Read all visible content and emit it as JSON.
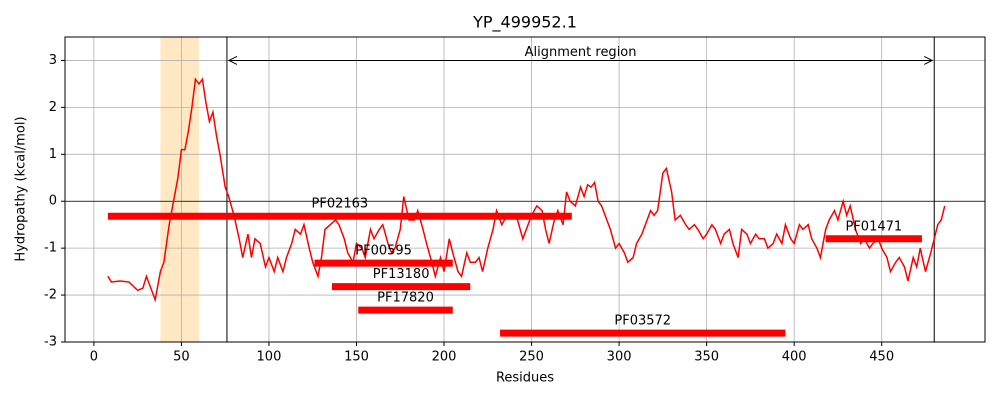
{
  "chart_data": {
    "type": "line",
    "title": "YP_499952.1",
    "xlabel": "Residues",
    "ylabel": "Hydropathy (kcal/mol)",
    "color": "#ff0000",
    "grid": true,
    "hline": 0,
    "xlim": [
      -16.5,
      509
    ],
    "ylim": [
      -3,
      3.5
    ],
    "xticks": [
      0,
      50,
      100,
      150,
      200,
      250,
      300,
      350,
      400,
      450
    ],
    "yticks": [
      -3,
      -2,
      -1,
      0,
      1,
      2,
      3
    ],
    "highlight": {
      "start": 38,
      "end": 60,
      "color": "#ffe8c2"
    },
    "alignment": {
      "label": "Alignment region",
      "start": 76,
      "end": 480,
      "y": 3
    },
    "domains": [
      {
        "name": "PF02163",
        "start": 8,
        "end": 273,
        "y": -0.32
      },
      {
        "name": "PF00595",
        "start": 126,
        "end": 205,
        "y": -1.32
      },
      {
        "name": "PF13180",
        "start": 136,
        "end": 215,
        "y": -1.82
      },
      {
        "name": "PF17820",
        "start": 151,
        "end": 205,
        "y": -2.32
      },
      {
        "name": "PF03572",
        "start": 232,
        "end": 395,
        "y": -2.81
      },
      {
        "name": "PF01471",
        "start": 418,
        "end": 473,
        "y": -0.8
      }
    ],
    "x": [
      8,
      10,
      15,
      20,
      25,
      28,
      30,
      33,
      35,
      38,
      40,
      43,
      45,
      48,
      50,
      52,
      54,
      56,
      58,
      60,
      62,
      64,
      66,
      68,
      70,
      72,
      75,
      77,
      80,
      83,
      85,
      88,
      90,
      92,
      95,
      98,
      100,
      103,
      105,
      108,
      110,
      113,
      115,
      118,
      120,
      123,
      125,
      128,
      130,
      132,
      135,
      138,
      140,
      143,
      145,
      148,
      150,
      153,
      155,
      158,
      160,
      163,
      165,
      168,
      170,
      172,
      175,
      177,
      180,
      183,
      185,
      188,
      190,
      193,
      195,
      198,
      200,
      203,
      205,
      208,
      210,
      213,
      215,
      218,
      220,
      222,
      225,
      228,
      230,
      233,
      236,
      239,
      242,
      245,
      248,
      250,
      253,
      256,
      258,
      260,
      263,
      265,
      268,
      270,
      272,
      275,
      278,
      280,
      282,
      284,
      286,
      288,
      290,
      293,
      295,
      298,
      300,
      303,
      305,
      308,
      310,
      313,
      315,
      318,
      320,
      322,
      325,
      327,
      330,
      332,
      335,
      338,
      340,
      343,
      345,
      348,
      350,
      353,
      355,
      358,
      360,
      363,
      365,
      368,
      370,
      373,
      375,
      378,
      380,
      383,
      385,
      388,
      390,
      393,
      395,
      398,
      400,
      403,
      405,
      408,
      410,
      413,
      415,
      418,
      420,
      423,
      425,
      428,
      430,
      432,
      435,
      438,
      440,
      443,
      445,
      448,
      450,
      453,
      455,
      458,
      460,
      463,
      465,
      468,
      470,
      472,
      475,
      478,
      480,
      482,
      484,
      486
    ],
    "values": [
      -1.6,
      -1.72,
      -1.7,
      -1.72,
      -1.9,
      -1.85,
      -1.6,
      -1.9,
      -2.1,
      -1.5,
      -1.3,
      -0.5,
      -0.1,
      0.5,
      1.1,
      1.1,
      1.5,
      2.0,
      2.6,
      2.5,
      2.6,
      2.1,
      1.7,
      1.9,
      1.4,
      1.0,
      0.3,
      0.1,
      -0.3,
      -0.8,
      -1.2,
      -0.7,
      -1.2,
      -0.8,
      -0.9,
      -1.4,
      -1.2,
      -1.5,
      -1.2,
      -1.5,
      -1.2,
      -0.9,
      -0.6,
      -0.7,
      -0.5,
      -1.0,
      -1.3,
      -1.6,
      -1.2,
      -0.6,
      -0.5,
      -0.4,
      -0.5,
      -0.8,
      -1.1,
      -1.3,
      -0.9,
      -1.0,
      -1.2,
      -0.6,
      -0.8,
      -0.6,
      -0.5,
      -0.9,
      -1.1,
      -1.0,
      -0.6,
      0.1,
      -0.4,
      -0.4,
      -0.2,
      -0.6,
      -0.9,
      -1.3,
      -1.6,
      -1.2,
      -1.5,
      -0.8,
      -1.1,
      -1.5,
      -1.6,
      -1.1,
      -1.3,
      -1.3,
      -1.2,
      -1.5,
      -1.0,
      -0.6,
      -0.2,
      -0.5,
      -0.3,
      -0.3,
      -0.4,
      -0.8,
      -0.5,
      -0.3,
      -0.1,
      -0.2,
      -0.6,
      -0.9,
      -0.4,
      -0.2,
      -0.5,
      0.2,
      0.0,
      -0.1,
      0.3,
      0.1,
      0.35,
      0.3,
      0.4,
      0.0,
      -0.1,
      -0.4,
      -0.6,
      -1.0,
      -0.9,
      -1.1,
      -1.3,
      -1.2,
      -0.9,
      -0.7,
      -0.5,
      -0.2,
      -0.3,
      -0.2,
      0.6,
      0.7,
      0.2,
      -0.4,
      -0.3,
      -0.5,
      -0.6,
      -0.5,
      -0.6,
      -0.8,
      -0.7,
      -0.5,
      -0.6,
      -0.9,
      -0.7,
      -0.6,
      -0.9,
      -1.2,
      -0.6,
      -0.7,
      -0.9,
      -0.7,
      -0.8,
      -0.8,
      -1.0,
      -0.9,
      -0.7,
      -0.9,
      -0.5,
      -0.8,
      -0.9,
      -0.5,
      -0.6,
      -0.5,
      -0.8,
      -1.0,
      -1.2,
      -0.6,
      -0.4,
      -0.2,
      -0.4,
      0.0,
      -0.3,
      -0.1,
      -0.6,
      -0.9,
      -0.8,
      -1.0,
      -0.9,
      -0.8,
      -1.0,
      -1.2,
      -1.5,
      -1.3,
      -1.2,
      -1.4,
      -1.7,
      -1.2,
      -1.4,
      -1.0,
      -1.5,
      -1.1,
      -0.8,
      -0.5,
      -0.4,
      -0.1
    ]
  }
}
